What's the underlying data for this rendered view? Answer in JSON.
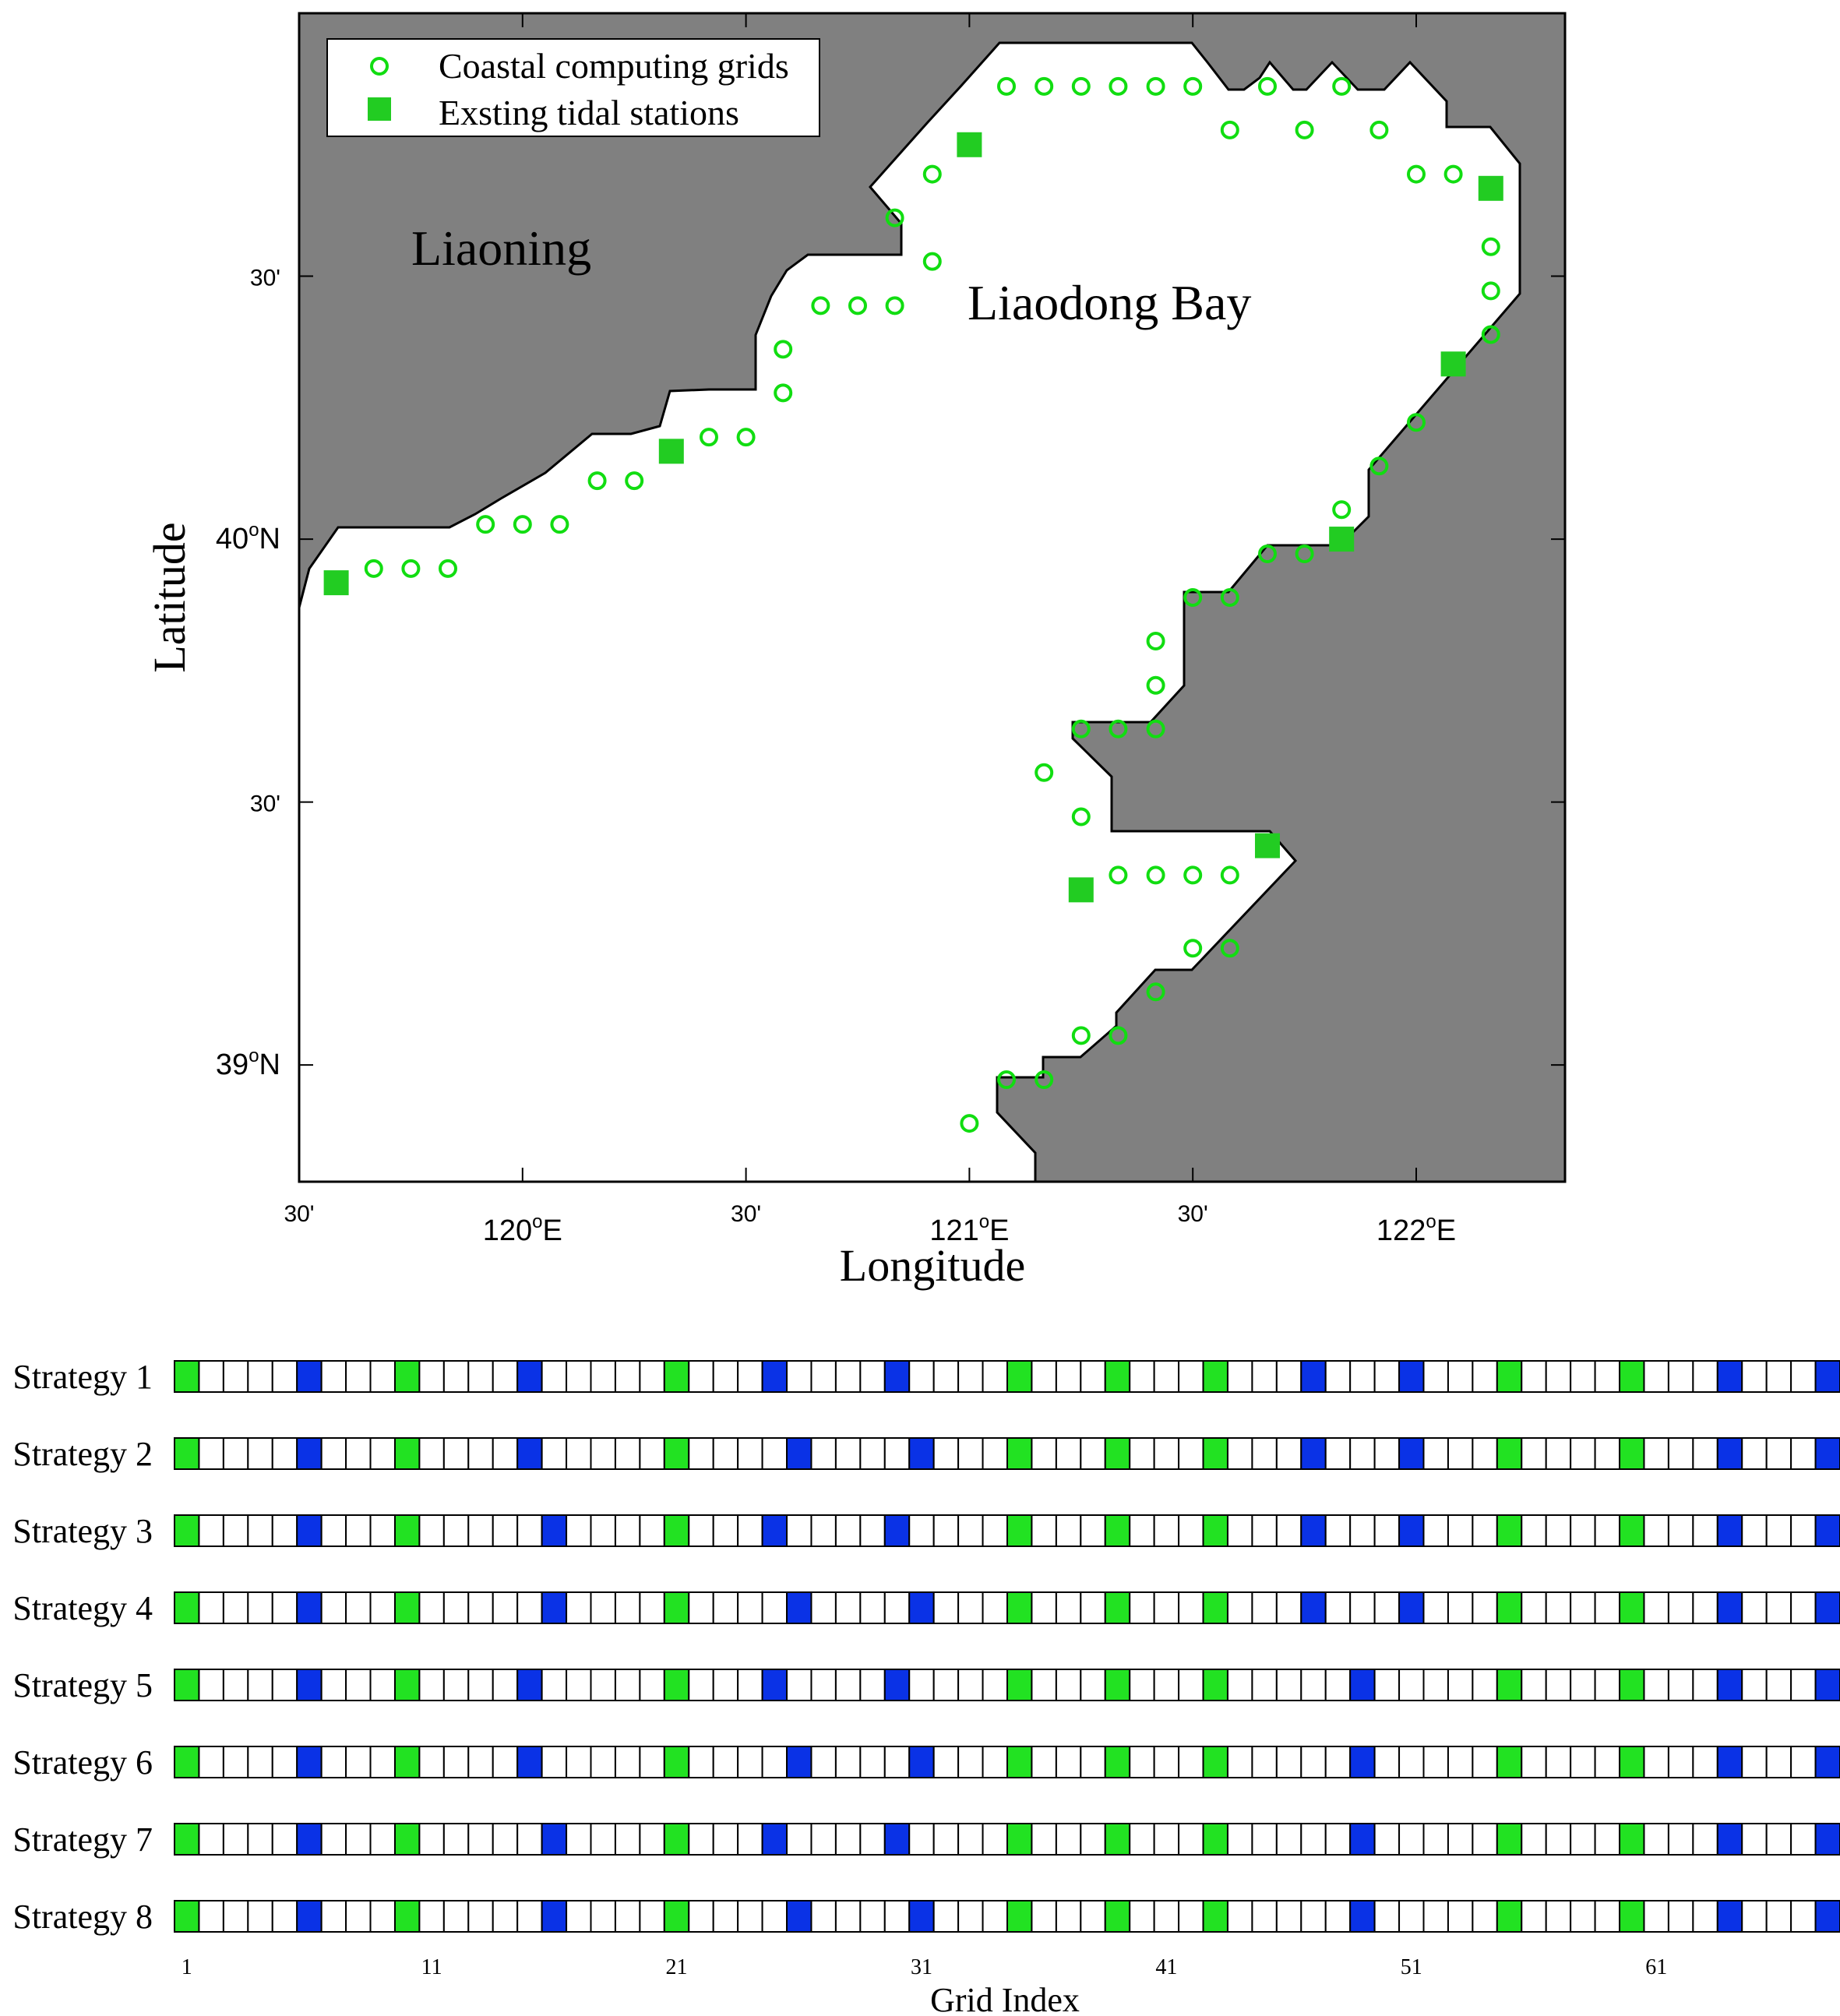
{
  "map": {
    "ylabel": "Latitude",
    "xlabel": "Longitude",
    "lat_ticks": [
      {
        "label": "39",
        "sup": "o",
        "suffix": "N",
        "lat": 39.0
      },
      {
        "label": "30'",
        "lat": 39.5
      },
      {
        "label": "40",
        "sup": "o",
        "suffix": "N",
        "lat": 40.0
      },
      {
        "label": "30'",
        "lat": 40.5
      }
    ],
    "lon_ticks": [
      {
        "label": "30'",
        "lon": 119.5
      },
      {
        "label": "120",
        "sup": "o",
        "suffix": "E",
        "lon": 120.0
      },
      {
        "label": "30'",
        "lon": 120.5
      },
      {
        "label": "121",
        "sup": "o",
        "suffix": "E",
        "lon": 121.0
      },
      {
        "label": "30'",
        "lon": 121.5
      },
      {
        "label": "122",
        "sup": "o",
        "suffix": "E",
        "lon": 122.0
      }
    ],
    "lon_range": [
      119.5,
      122.333
    ],
    "lat_range": [
      38.778,
      41.0
    ],
    "land_labels": {
      "liaoning": "Liaoning",
      "bay": "Liaodong Bay"
    },
    "legend": {
      "position": "top-left",
      "grids_label": "Coastal computing grids",
      "stations_label": "Exsting tidal stations"
    },
    "colors": {
      "land": "#808080",
      "marker": "#22cc22",
      "grid_marker": "#11dd11"
    },
    "tidal_stations": [
      [
        119.583,
        39.917
      ],
      [
        120.333,
        40.167
      ],
      [
        121.0,
        40.75
      ],
      [
        122.167,
        40.667
      ],
      [
        122.083,
        40.333
      ],
      [
        121.833,
        40.0
      ],
      [
        121.667,
        39.417
      ],
      [
        121.25,
        39.333
      ]
    ],
    "coastal_grids": [
      [
        119.667,
        39.944
      ],
      [
        119.75,
        39.944
      ],
      [
        119.833,
        39.944
      ],
      [
        119.917,
        40.028
      ],
      [
        120.0,
        40.028
      ],
      [
        120.083,
        40.028
      ],
      [
        120.167,
        40.111
      ],
      [
        120.25,
        40.111
      ],
      [
        120.417,
        40.194
      ],
      [
        120.5,
        40.194
      ],
      [
        120.583,
        40.278
      ],
      [
        120.583,
        40.361
      ],
      [
        120.667,
        40.444
      ],
      [
        120.75,
        40.444
      ],
      [
        120.833,
        40.444
      ],
      [
        120.917,
        40.528
      ],
      [
        120.833,
        40.611
      ],
      [
        120.917,
        40.694
      ],
      [
        121.083,
        40.861
      ],
      [
        121.167,
        40.861
      ],
      [
        121.25,
        40.861
      ],
      [
        121.333,
        40.861
      ],
      [
        121.417,
        40.861
      ],
      [
        121.5,
        40.861
      ],
      [
        121.583,
        40.778
      ],
      [
        121.667,
        40.861
      ],
      [
        121.75,
        40.778
      ],
      [
        121.833,
        40.861
      ],
      [
        121.917,
        40.778
      ],
      [
        122.0,
        40.694
      ],
      [
        122.083,
        40.694
      ],
      [
        122.167,
        40.556
      ],
      [
        122.167,
        40.472
      ],
      [
        122.167,
        40.389
      ],
      [
        122.0,
        40.222
      ],
      [
        121.917,
        40.139
      ],
      [
        121.833,
        40.056
      ],
      [
        121.75,
        39.972
      ],
      [
        121.667,
        39.972
      ],
      [
        121.583,
        39.889
      ],
      [
        121.5,
        39.889
      ],
      [
        121.417,
        39.806
      ],
      [
        121.417,
        39.722
      ],
      [
        121.417,
        39.639
      ],
      [
        121.333,
        39.639
      ],
      [
        121.25,
        39.639
      ],
      [
        121.167,
        39.556
      ],
      [
        121.25,
        39.472
      ],
      [
        121.333,
        39.361
      ],
      [
        121.417,
        39.361
      ],
      [
        121.5,
        39.361
      ],
      [
        121.583,
        39.361
      ],
      [
        121.583,
        39.222
      ],
      [
        121.5,
        39.222
      ],
      [
        121.417,
        39.139
      ],
      [
        121.333,
        39.056
      ],
      [
        121.25,
        39.056
      ],
      [
        121.167,
        38.972
      ],
      [
        121.083,
        38.972
      ],
      [
        121.0,
        38.889
      ]
    ]
  },
  "strategies": {
    "xlabel": "Grid Index",
    "tick_labels": [
      "1",
      "11",
      "21",
      "31",
      "41",
      "51",
      "61"
    ],
    "tick_indices": [
      1,
      11,
      21,
      31,
      41,
      51,
      61
    ],
    "num_cells": 68,
    "colors": {
      "existing": "#22e222",
      "selected": "#0a32e6",
      "empty": "#ffffff"
    },
    "existing_indices": [
      1,
      10,
      21,
      35,
      39,
      43,
      55,
      60
    ],
    "rows": [
      {
        "label": "Strategy 1",
        "selected": [
          6,
          15,
          25,
          30,
          47,
          51,
          64,
          68
        ]
      },
      {
        "label": "Strategy 2",
        "selected": [
          6,
          15,
          26,
          31,
          47,
          51,
          64,
          68
        ]
      },
      {
        "label": "Strategy 3",
        "selected": [
          6,
          16,
          25,
          30,
          47,
          51,
          64,
          68
        ]
      },
      {
        "label": "Strategy 4",
        "selected": [
          6,
          16,
          26,
          31,
          47,
          51,
          64,
          68
        ]
      },
      {
        "label": "Strategy 5",
        "selected": [
          6,
          15,
          25,
          30,
          49,
          64,
          68
        ]
      },
      {
        "label": "Strategy 6",
        "selected": [
          6,
          15,
          26,
          31,
          49,
          64,
          68
        ]
      },
      {
        "label": "Strategy 7",
        "selected": [
          6,
          16,
          25,
          30,
          49,
          64,
          68
        ]
      },
      {
        "label": "Strategy 8",
        "selected": [
          6,
          16,
          26,
          31,
          49,
          64,
          68
        ]
      }
    ]
  }
}
